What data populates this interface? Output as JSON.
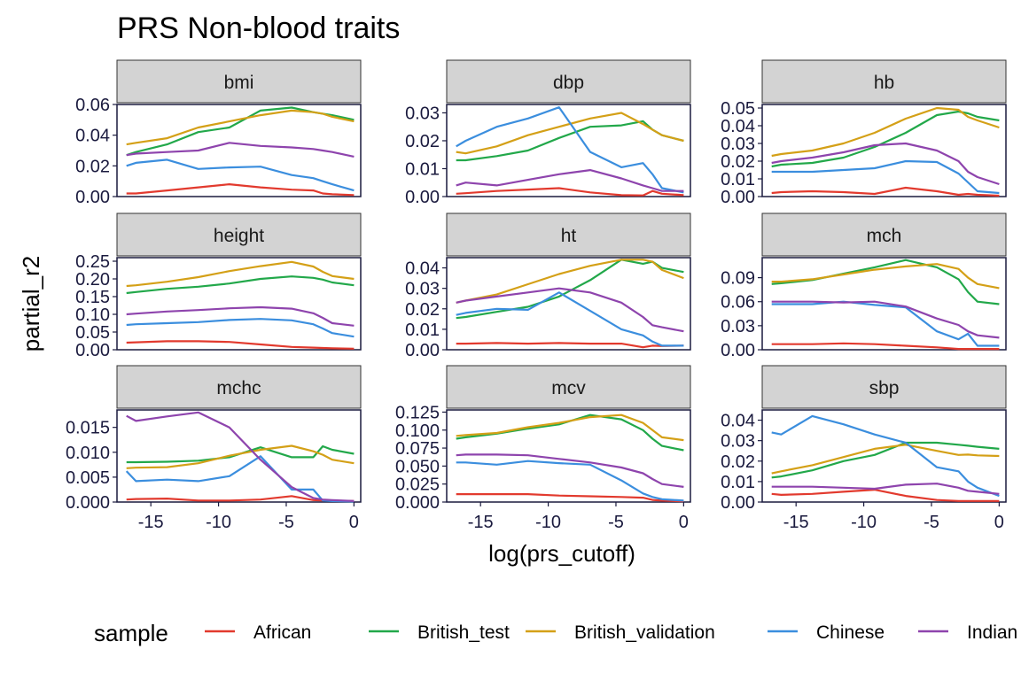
{
  "chart_data": {
    "type": "line",
    "title": "PRS Non-blood traits",
    "xlabel": "log(prs_cutoff)",
    "ylabel": "partial_r2",
    "xlim": [
      -17.5,
      0.5
    ],
    "x_ticks": [
      -15,
      -10,
      -5,
      0
    ],
    "x_tick_labels": [
      "-15",
      "-10",
      "-5",
      "0"
    ],
    "grid": false,
    "legend": {
      "title": "sample",
      "placement": "bottom",
      "entries": [
        "African",
        "British_test",
        "British_validation",
        "Chinese",
        "Indian"
      ]
    },
    "colors": {
      "African": "#e23a2e",
      "British_test": "#22a84a",
      "British_validation": "#d4a017",
      "Chinese": "#3b8ede",
      "Indian": "#8e44ad"
    },
    "x": [
      -16.8,
      -16.1,
      -13.8,
      -11.5,
      -9.2,
      -6.9,
      -4.6,
      -3.0,
      -2.3,
      -1.6,
      0
    ],
    "panels": [
      {
        "name": "bmi",
        "ylim": [
          0,
          0.06
        ],
        "yticks": [
          0,
          0.02,
          0.04,
          0.06
        ],
        "ytick_labels": [
          "0.00",
          "0.02",
          "0.04",
          "0.06"
        ],
        "series": [
          {
            "name": "African",
            "values": [
              0.002,
              0.002,
              0.004,
              0.006,
              0.008,
              0.006,
              0.0045,
              0.004,
              0.002,
              0.0015,
              0.001
            ]
          },
          {
            "name": "British_test",
            "values": [
              0.027,
              0.029,
              0.034,
              0.042,
              0.045,
              0.056,
              0.058,
              0.055,
              0.054,
              0.053,
              0.05
            ]
          },
          {
            "name": "British_validation",
            "values": [
              0.034,
              0.035,
              0.038,
              0.045,
              0.049,
              0.053,
              0.056,
              0.055,
              0.054,
              0.052,
              0.049
            ]
          },
          {
            "name": "Chinese",
            "values": [
              0.02,
              0.022,
              0.024,
              0.018,
              0.019,
              0.0195,
              0.014,
              0.012,
              0.01,
              0.008,
              0.004
            ]
          },
          {
            "name": "Indian",
            "values": [
              0.027,
              0.028,
              0.029,
              0.03,
              0.035,
              0.033,
              0.032,
              0.031,
              0.03,
              0.029,
              0.026
            ]
          }
        ]
      },
      {
        "name": "dbp",
        "ylim": [
          0,
          0.033
        ],
        "yticks": [
          0,
          0.01,
          0.02,
          0.03
        ],
        "ytick_labels": [
          "0.00",
          "0.01",
          "0.02",
          "0.03"
        ],
        "series": [
          {
            "name": "African",
            "values": [
              0.001,
              0.0012,
              0.002,
              0.0025,
              0.003,
              0.0015,
              0.0005,
              0.0004,
              0.002,
              0.001,
              0.0005
            ]
          },
          {
            "name": "British_test",
            "values": [
              0.013,
              0.013,
              0.0145,
              0.0165,
              0.021,
              0.025,
              0.0255,
              0.027,
              0.024,
              0.022,
              0.02
            ]
          },
          {
            "name": "British_validation",
            "values": [
              0.016,
              0.0155,
              0.018,
              0.022,
              0.025,
              0.028,
              0.03,
              0.026,
              0.024,
              0.022,
              0.02
            ]
          },
          {
            "name": "Chinese",
            "values": [
              0.018,
              0.02,
              0.025,
              0.028,
              0.032,
              0.016,
              0.0105,
              0.012,
              0.008,
              0.003,
              0.0015
            ]
          },
          {
            "name": "Indian",
            "values": [
              0.004,
              0.005,
              0.004,
              0.006,
              0.008,
              0.0095,
              0.0065,
              0.004,
              0.003,
              0.002,
              0.002
            ]
          }
        ]
      },
      {
        "name": "hb",
        "ylim": [
          0,
          0.052
        ],
        "yticks": [
          0,
          0.01,
          0.02,
          0.03,
          0.04,
          0.05
        ],
        "ytick_labels": [
          "0.00",
          "0.01",
          "0.02",
          "0.03",
          "0.04",
          "0.05"
        ],
        "series": [
          {
            "name": "African",
            "values": [
              0.002,
              0.0025,
              0.003,
              0.0025,
              0.0015,
              0.005,
              0.003,
              0.001,
              0.0015,
              0.001,
              0.0005
            ]
          },
          {
            "name": "British_test",
            "values": [
              0.017,
              0.018,
              0.019,
              0.022,
              0.028,
              0.036,
              0.046,
              0.048,
              0.047,
              0.045,
              0.043
            ]
          },
          {
            "name": "British_validation",
            "values": [
              0.023,
              0.024,
              0.026,
              0.03,
              0.036,
              0.044,
              0.05,
              0.049,
              0.045,
              0.043,
              0.039
            ]
          },
          {
            "name": "Chinese",
            "values": [
              0.014,
              0.014,
              0.014,
              0.015,
              0.016,
              0.02,
              0.0195,
              0.013,
              0.008,
              0.003,
              0.002
            ]
          },
          {
            "name": "Indian",
            "values": [
              0.019,
              0.02,
              0.022,
              0.025,
              0.029,
              0.03,
              0.026,
              0.02,
              0.014,
              0.011,
              0.007
            ]
          }
        ]
      },
      {
        "name": "height",
        "ylim": [
          0,
          0.26
        ],
        "yticks": [
          0,
          0.05,
          0.1,
          0.15,
          0.2,
          0.25
        ],
        "ytick_labels": [
          "0.00",
          "0.05",
          "0.10",
          "0.15",
          "0.20",
          "0.25"
        ],
        "series": [
          {
            "name": "African",
            "values": [
              0.02,
              0.021,
              0.024,
              0.024,
              0.022,
              0.015,
              0.008,
              0.006,
              0.005,
              0.004,
              0.003
            ]
          },
          {
            "name": "British_test",
            "values": [
              0.16,
              0.163,
              0.172,
              0.178,
              0.187,
              0.2,
              0.207,
              0.203,
              0.198,
              0.19,
              0.182
            ]
          },
          {
            "name": "British_validation",
            "values": [
              0.18,
              0.182,
              0.192,
              0.205,
              0.222,
              0.236,
              0.248,
              0.235,
              0.22,
              0.208,
              0.2
            ]
          },
          {
            "name": "Chinese",
            "values": [
              0.07,
              0.072,
              0.075,
              0.078,
              0.084,
              0.087,
              0.083,
              0.072,
              0.06,
              0.047,
              0.037
            ]
          },
          {
            "name": "Indian",
            "values": [
              0.1,
              0.102,
              0.108,
              0.112,
              0.117,
              0.12,
              0.116,
              0.103,
              0.09,
              0.075,
              0.068
            ]
          }
        ]
      },
      {
        "name": "ht",
        "ylim": [
          0,
          0.045
        ],
        "yticks": [
          0,
          0.01,
          0.02,
          0.03,
          0.04
        ],
        "ytick_labels": [
          "0.00",
          "0.01",
          "0.02",
          "0.03",
          "0.04"
        ],
        "series": [
          {
            "name": "African",
            "values": [
              0.003,
              0.003,
              0.0033,
              0.003,
              0.0033,
              0.003,
              0.003,
              0.0012,
              0.002,
              0.0018,
              0.002
            ]
          },
          {
            "name": "British_test",
            "values": [
              0.0155,
              0.016,
              0.0185,
              0.021,
              0.026,
              0.034,
              0.044,
              0.042,
              0.043,
              0.04,
              0.038
            ]
          },
          {
            "name": "British_validation",
            "values": [
              0.023,
              0.024,
              0.027,
              0.032,
              0.037,
              0.041,
              0.044,
              0.044,
              0.043,
              0.039,
              0.035
            ]
          },
          {
            "name": "Chinese",
            "values": [
              0.017,
              0.018,
              0.02,
              0.0195,
              0.028,
              0.019,
              0.01,
              0.007,
              0.004,
              0.002,
              0.002
            ]
          },
          {
            "name": "Indian",
            "values": [
              0.023,
              0.024,
              0.026,
              0.028,
              0.03,
              0.028,
              0.023,
              0.016,
              0.012,
              0.011,
              0.009
            ]
          }
        ]
      },
      {
        "name": "mch",
        "ylim": [
          0,
          0.115
        ],
        "yticks": [
          0,
          0.03,
          0.06,
          0.09
        ],
        "ytick_labels": [
          "0.00",
          "0.03",
          "0.06",
          "0.09"
        ],
        "series": [
          {
            "name": "African",
            "values": [
              0.007,
              0.007,
              0.007,
              0.008,
              0.007,
              0.005,
              0.003,
              0.001,
              0.001,
              0.001,
              0.001
            ]
          },
          {
            "name": "British_test",
            "values": [
              0.082,
              0.083,
              0.087,
              0.095,
              0.103,
              0.112,
              0.103,
              0.088,
              0.072,
              0.06,
              0.057
            ]
          },
          {
            "name": "British_validation",
            "values": [
              0.085,
              0.085,
              0.088,
              0.094,
              0.1,
              0.104,
              0.107,
              0.101,
              0.09,
              0.082,
              0.077
            ]
          },
          {
            "name": "Chinese",
            "values": [
              0.057,
              0.057,
              0.057,
              0.06,
              0.056,
              0.053,
              0.023,
              0.013,
              0.02,
              0.005,
              0.005
            ]
          },
          {
            "name": "Indian",
            "values": [
              0.06,
              0.06,
              0.06,
              0.059,
              0.06,
              0.054,
              0.039,
              0.031,
              0.023,
              0.018,
              0.015
            ]
          }
        ]
      },
      {
        "name": "mchc",
        "ylim": [
          0,
          0.0185
        ],
        "yticks": [
          0,
          0.005,
          0.01,
          0.015
        ],
        "ytick_labels": [
          "0.000",
          "0.005",
          "0.010",
          "0.015"
        ],
        "series": [
          {
            "name": "African",
            "values": [
              0.0005,
              0.0006,
              0.0007,
              0.0003,
              0.0003,
              0.0005,
              0.0012,
              0.0004,
              0.0003,
              0.0003,
              0.0002
            ]
          },
          {
            "name": "British_test",
            "values": [
              0.008,
              0.008,
              0.0081,
              0.0083,
              0.009,
              0.011,
              0.009,
              0.009,
              0.0112,
              0.0105,
              0.0097
            ]
          },
          {
            "name": "British_validation",
            "values": [
              0.0068,
              0.0069,
              0.007,
              0.0078,
              0.0093,
              0.0105,
              0.0113,
              0.0102,
              0.0095,
              0.0085,
              0.0078
            ]
          },
          {
            "name": "Chinese",
            "values": [
              0.0062,
              0.0042,
              0.0045,
              0.0042,
              0.0052,
              0.0092,
              0.0025,
              0.0025,
              0.0003,
              0.0002,
              0.0001
            ]
          },
          {
            "name": "Indian",
            "values": [
              0.0173,
              0.0163,
              0.0172,
              0.018,
              0.015,
              0.0085,
              0.003,
              0.0008,
              0.0005,
              0.0004,
              0.0002
            ]
          }
        ]
      },
      {
        "name": "mcv",
        "ylim": [
          0,
          0.128
        ],
        "yticks": [
          0,
          0.025,
          0.05,
          0.075,
          0.1,
          0.125
        ],
        "ytick_labels": [
          "0.000",
          "0.025",
          "0.050",
          "0.075",
          "0.100",
          "0.125"
        ],
        "series": [
          {
            "name": "African",
            "values": [
              0.011,
              0.011,
              0.011,
              0.011,
              0.009,
              0.008,
              0.007,
              0.006,
              0.003,
              0.002,
              0.001
            ]
          },
          {
            "name": "British_test",
            "values": [
              0.088,
              0.09,
              0.095,
              0.102,
              0.108,
              0.121,
              0.115,
              0.1,
              0.088,
              0.078,
              0.072
            ]
          },
          {
            "name": "British_validation",
            "values": [
              0.092,
              0.093,
              0.096,
              0.104,
              0.11,
              0.118,
              0.121,
              0.11,
              0.1,
              0.09,
              0.086
            ]
          },
          {
            "name": "Chinese",
            "values": [
              0.055,
              0.055,
              0.052,
              0.057,
              0.054,
              0.052,
              0.03,
              0.012,
              0.007,
              0.004,
              0.002
            ]
          },
          {
            "name": "Indian",
            "values": [
              0.065,
              0.066,
              0.066,
              0.065,
              0.06,
              0.055,
              0.048,
              0.04,
              0.032,
              0.025,
              0.021
            ]
          }
        ]
      },
      {
        "name": "sbp",
        "ylim": [
          0,
          0.045
        ],
        "yticks": [
          0,
          0.01,
          0.02,
          0.03,
          0.04
        ],
        "ytick_labels": [
          "0.00",
          "0.01",
          "0.02",
          "0.03",
          "0.04"
        ],
        "series": [
          {
            "name": "African",
            "values": [
              0.004,
              0.0035,
              0.004,
              0.005,
              0.006,
              0.003,
              0.001,
              0.0005,
              0.0005,
              0.0005,
              0.0005
            ]
          },
          {
            "name": "British_test",
            "values": [
              0.012,
              0.0125,
              0.0155,
              0.02,
              0.023,
              0.029,
              0.029,
              0.028,
              0.0275,
              0.027,
              0.026
            ]
          },
          {
            "name": "British_validation",
            "values": [
              0.014,
              0.015,
              0.018,
              0.022,
              0.026,
              0.028,
              0.025,
              0.023,
              0.0232,
              0.0228,
              0.0225
            ]
          },
          {
            "name": "Chinese",
            "values": [
              0.034,
              0.033,
              0.042,
              0.038,
              0.033,
              0.029,
              0.017,
              0.015,
              0.01,
              0.007,
              0.003
            ]
          },
          {
            "name": "Indian",
            "values": [
              0.0075,
              0.0075,
              0.0075,
              0.007,
              0.0065,
              0.0085,
              0.009,
              0.007,
              0.0055,
              0.005,
              0.004
            ]
          }
        ]
      }
    ]
  }
}
